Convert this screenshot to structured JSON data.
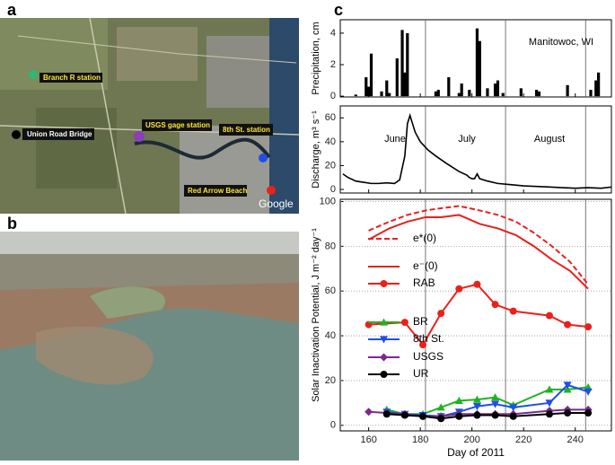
{
  "panel_labels": [
    "a",
    "b",
    "c"
  ],
  "map": {
    "labels": [
      "Branch R station",
      "Union Road Bridge",
      "USGS gage station",
      "8th St. station",
      "Red Arrow Beach"
    ],
    "credit": "Google"
  },
  "chart_data": [
    {
      "type": "bar",
      "ylabel": "Precipitation, cm",
      "annotations": [
        "Manitowoc, WI"
      ],
      "x": [
        155,
        159,
        160,
        161,
        165,
        167,
        168,
        171,
        173,
        174,
        175,
        186,
        187,
        191,
        195,
        196,
        199,
        202,
        203,
        206,
        209,
        210,
        212,
        219,
        225,
        226,
        237,
        246,
        248,
        249
      ],
      "values": [
        0.1,
        1.2,
        0.6,
        2.7,
        0.3,
        1.0,
        0.2,
        2.4,
        4.2,
        1.5,
        4.0,
        0.3,
        0.4,
        1.2,
        0.2,
        0.8,
        0.4,
        4.3,
        3.5,
        0.5,
        0.8,
        1.0,
        0.2,
        0.5,
        0.4,
        0.3,
        0.7,
        0.4,
        1.0,
        1.5
      ],
      "color": "#000000",
      "xlim": [
        149,
        254
      ],
      "ylim": [
        -0.05,
        4.85
      ],
      "yticks": [
        0,
        2,
        4
      ],
      "vlines": [
        182,
        213,
        244
      ]
    },
    {
      "type": "line",
      "ylabel": "Discharge, m³ s⁻¹",
      "annotations": [
        "June",
        "July",
        "August"
      ],
      "x": [
        150,
        152,
        155,
        158,
        161,
        164,
        167,
        170,
        172,
        174,
        175,
        176,
        177,
        178,
        180,
        183,
        186,
        190,
        195,
        198,
        199,
        200,
        201,
        202,
        203,
        206,
        210,
        215,
        220,
        225,
        230,
        235,
        240,
        245,
        250,
        254
      ],
      "values": [
        13,
        10,
        7,
        6,
        5,
        5,
        5.5,
        5,
        8,
        28,
        55,
        62,
        55,
        48,
        40,
        33,
        28,
        22,
        15,
        12,
        10,
        9,
        9,
        13,
        9,
        7,
        5,
        4,
        3,
        2.5,
        2,
        1.5,
        1,
        1.5,
        1,
        2
      ],
      "color": "#000000",
      "xlim": [
        149,
        254
      ],
      "ylim": [
        -3,
        70
      ],
      "yticks": [
        0,
        20,
        40,
        60
      ],
      "vlines": [
        182,
        213,
        244
      ]
    },
    {
      "type": "line",
      "xlabel": "Day of 2011",
      "ylabel": "Solar Inactivation Potential, J m⁻² day⁻¹",
      "xlim": [
        149,
        254
      ],
      "ylim": [
        -2.5,
        101
      ],
      "xticks": [
        160,
        180,
        200,
        220,
        240
      ],
      "yticks": [
        0,
        20,
        40,
        60,
        80,
        100
      ],
      "grid": true,
      "vlines": [
        182,
        213,
        244
      ],
      "series": [
        {
          "name": "e*(0)",
          "color": "#e8211c",
          "dash": true,
          "marker": "none",
          "x": [
            160,
            168,
            175,
            182,
            188,
            195,
            203,
            210,
            217,
            224,
            231,
            238,
            245
          ],
          "values": [
            87,
            91,
            94,
            96,
            97,
            98,
            96,
            94,
            91,
            86,
            80,
            73,
            63
          ]
        },
        {
          "name": "e⁻(0)",
          "color": "#e8211c",
          "dash": false,
          "marker": "none",
          "x": [
            160,
            168,
            175,
            182,
            188,
            195,
            203,
            210,
            217,
            224,
            231,
            238,
            245
          ],
          "values": [
            83,
            88,
            91,
            93,
            93,
            94,
            90,
            88,
            85,
            80,
            74,
            69,
            61
          ]
        },
        {
          "name": "RAB",
          "color": "#e8211c",
          "dash": false,
          "marker": "circle",
          "x": [
            160,
            174,
            181,
            188,
            195,
            202,
            209,
            216,
            230,
            237,
            245
          ],
          "values": [
            45,
            46,
            36,
            50,
            61,
            63,
            54,
            51,
            49,
            45,
            44
          ]
        },
        {
          "name": "BR",
          "color": "#1fb41f",
          "dash": false,
          "marker": "triangle-up",
          "x": [
            167,
            174,
            181,
            188,
            195,
            202,
            209,
            216,
            230,
            237,
            245
          ],
          "values": [
            7,
            5,
            5,
            8,
            11,
            11.5,
            12.5,
            9,
            16,
            16,
            17
          ]
        },
        {
          "name": "8th St.",
          "color": "#1f4fe8",
          "dash": false,
          "marker": "triangle-down",
          "x": [
            167,
            174,
            181,
            188,
            195,
            202,
            209,
            216,
            230,
            237,
            245
          ],
          "values": [
            6,
            5,
            4.5,
            4,
            6,
            8.5,
            9.5,
            8,
            10,
            18,
            15
          ]
        },
        {
          "name": "USGS",
          "color": "#7b2a8c",
          "dash": false,
          "marker": "diamond",
          "x": [
            160,
            167,
            174,
            181,
            188,
            195,
            202,
            209,
            216,
            230,
            237,
            245
          ],
          "values": [
            6,
            5.5,
            5,
            4,
            4,
            5,
            5,
            5,
            5,
            6.5,
            7,
            7
          ]
        },
        {
          "name": "UR",
          "color": "#000000",
          "dash": false,
          "marker": "circle",
          "x": [
            167,
            174,
            181,
            188,
            195,
            202,
            209,
            216,
            230,
            237,
            245
          ],
          "values": [
            5,
            4.5,
            4,
            3,
            4,
            4.5,
            4.5,
            4,
            5,
            5.5,
            5.5
          ]
        }
      ]
    }
  ]
}
